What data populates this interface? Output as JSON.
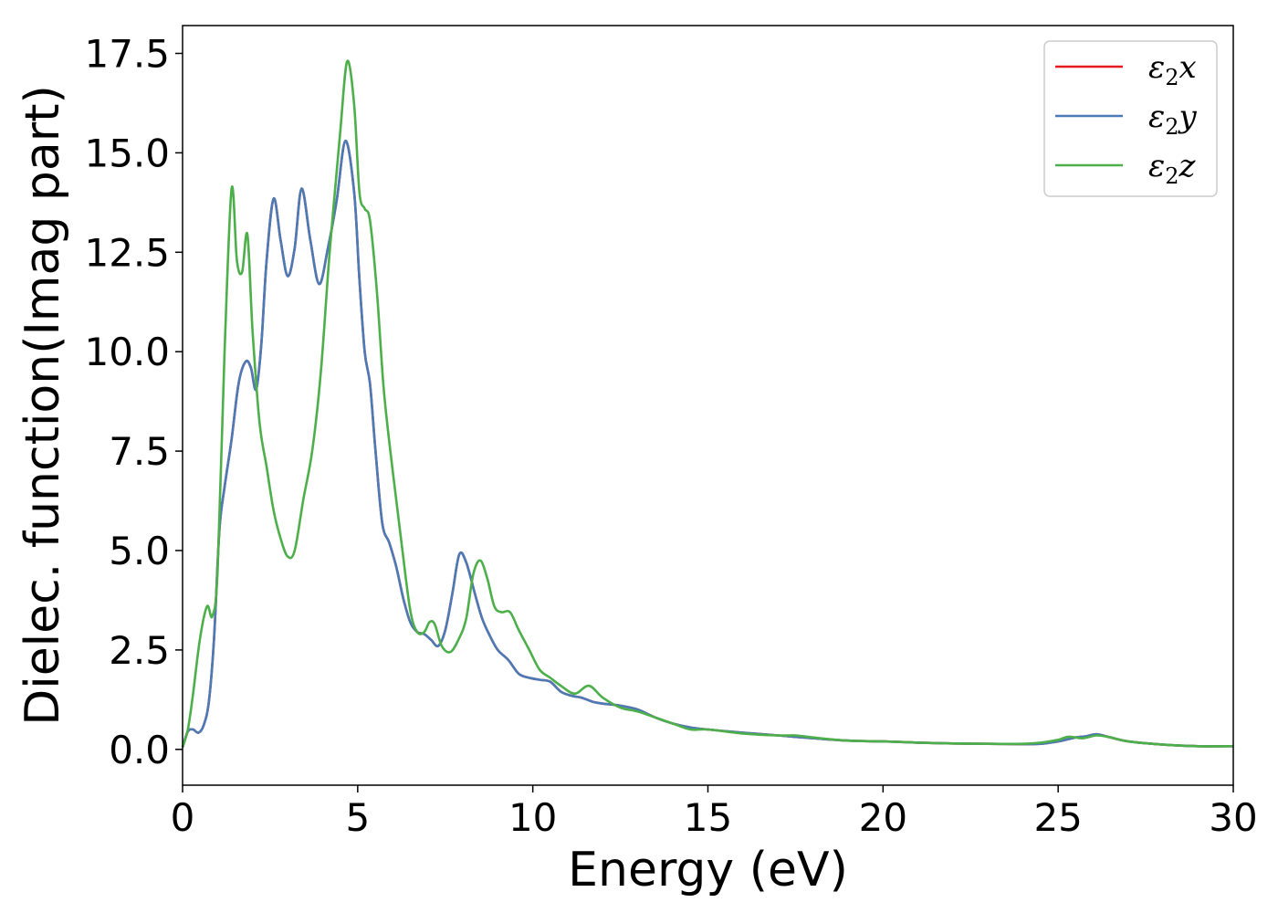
{
  "chart_data": {
    "type": "line",
    "title": "",
    "xlabel": "Energy (eV)",
    "ylabel": "Dielec. function(Imag part)",
    "xlim": [
      0,
      30
    ],
    "ylim": [
      -0.9,
      18.2
    ],
    "x_ticks": [
      0,
      5,
      10,
      15,
      20,
      25,
      30
    ],
    "x_tick_labels": [
      "0",
      "5",
      "10",
      "15",
      "20",
      "25",
      "30"
    ],
    "y_ticks": [
      0.0,
      2.5,
      5.0,
      7.5,
      10.0,
      12.5,
      15.0,
      17.5
    ],
    "y_tick_labels": [
      "0.0",
      "2.5",
      "5.0",
      "7.5",
      "10.0",
      "12.5",
      "15.0",
      "17.5"
    ],
    "grid": false,
    "legend": {
      "position": "top-right"
    },
    "series": [
      {
        "name": "ε2x",
        "legend_main": "ε",
        "legend_sub": "2",
        "legend_tail": "x",
        "color": "#e41a1c",
        "x": [
          0,
          0.15,
          0.3,
          0.45,
          0.6,
          0.75,
          0.9,
          1.05,
          1.2,
          1.4,
          1.6,
          1.8,
          1.95,
          2.1,
          2.25,
          2.4,
          2.6,
          2.8,
          3.0,
          3.2,
          3.4,
          3.65,
          3.9,
          4.15,
          4.4,
          4.65,
          4.9,
          5.05,
          5.2,
          5.35,
          5.5,
          5.7,
          5.9,
          6.1,
          6.3,
          6.5,
          6.7,
          6.9,
          7.1,
          7.3,
          7.5,
          7.7,
          7.9,
          8.1,
          8.35,
          8.55,
          8.75,
          9.0,
          9.3,
          9.6,
          9.9,
          10.2,
          10.5,
          10.8,
          11.1,
          11.4,
          11.7,
          12.0,
          12.5,
          13.0,
          13.5,
          14.0,
          14.5,
          15.0,
          16.0,
          17.0,
          18.0,
          19.0,
          20.0,
          21.0,
          22.0,
          23.0,
          24.0,
          24.5,
          25.0,
          25.5,
          25.8,
          26.1,
          26.5,
          27.0,
          28.0,
          29.0,
          30.0
        ],
        "y": [
          0.05,
          0.45,
          0.5,
          0.42,
          0.6,
          1.2,
          2.8,
          5.5,
          6.6,
          7.8,
          9.2,
          9.75,
          9.6,
          9.05,
          10.2,
          12.3,
          13.85,
          12.8,
          11.9,
          12.6,
          14.1,
          12.8,
          11.7,
          12.6,
          13.8,
          15.3,
          14.0,
          11.8,
          10.0,
          9.2,
          7.6,
          5.7,
          5.2,
          4.6,
          3.8,
          3.2,
          2.95,
          2.9,
          2.75,
          2.6,
          3.0,
          3.9,
          4.9,
          4.7,
          3.9,
          3.3,
          2.9,
          2.5,
          2.25,
          1.9,
          1.8,
          1.75,
          1.7,
          1.45,
          1.35,
          1.3,
          1.2,
          1.15,
          1.1,
          1.0,
          0.8,
          0.65,
          0.55,
          0.5,
          0.42,
          0.35,
          0.28,
          0.22,
          0.2,
          0.17,
          0.15,
          0.14,
          0.13,
          0.14,
          0.2,
          0.3,
          0.33,
          0.38,
          0.3,
          0.2,
          0.12,
          0.08,
          0.08
        ]
      },
      {
        "name": "ε2y",
        "legend_main": "ε",
        "legend_sub": "2",
        "legend_tail": "y",
        "color": "#4a7bb7",
        "x": [
          0,
          0.15,
          0.3,
          0.45,
          0.6,
          0.75,
          0.9,
          1.05,
          1.2,
          1.4,
          1.6,
          1.8,
          1.95,
          2.1,
          2.25,
          2.4,
          2.6,
          2.8,
          3.0,
          3.2,
          3.4,
          3.65,
          3.9,
          4.15,
          4.4,
          4.65,
          4.9,
          5.05,
          5.2,
          5.35,
          5.5,
          5.7,
          5.9,
          6.1,
          6.3,
          6.5,
          6.7,
          6.9,
          7.1,
          7.3,
          7.5,
          7.7,
          7.9,
          8.1,
          8.35,
          8.55,
          8.75,
          9.0,
          9.3,
          9.6,
          9.9,
          10.2,
          10.5,
          10.8,
          11.1,
          11.4,
          11.7,
          12.0,
          12.5,
          13.0,
          13.5,
          14.0,
          14.5,
          15.0,
          16.0,
          17.0,
          18.0,
          19.0,
          20.0,
          21.0,
          22.0,
          23.0,
          24.0,
          24.5,
          25.0,
          25.5,
          25.8,
          26.1,
          26.5,
          27.0,
          28.0,
          29.0,
          30.0
        ],
        "y": [
          0.05,
          0.45,
          0.5,
          0.42,
          0.6,
          1.2,
          2.8,
          5.5,
          6.6,
          7.8,
          9.2,
          9.75,
          9.6,
          9.05,
          10.2,
          12.3,
          13.85,
          12.8,
          11.9,
          12.6,
          14.1,
          12.8,
          11.7,
          12.6,
          13.8,
          15.3,
          14.0,
          11.8,
          10.0,
          9.2,
          7.6,
          5.7,
          5.2,
          4.6,
          3.8,
          3.2,
          2.95,
          2.9,
          2.75,
          2.6,
          3.0,
          3.9,
          4.9,
          4.7,
          3.9,
          3.3,
          2.9,
          2.5,
          2.25,
          1.9,
          1.8,
          1.75,
          1.7,
          1.45,
          1.35,
          1.3,
          1.2,
          1.15,
          1.1,
          1.0,
          0.8,
          0.65,
          0.55,
          0.5,
          0.42,
          0.35,
          0.28,
          0.22,
          0.2,
          0.17,
          0.15,
          0.14,
          0.13,
          0.14,
          0.2,
          0.3,
          0.33,
          0.38,
          0.3,
          0.2,
          0.12,
          0.08,
          0.08
        ]
      },
      {
        "name": "ε2z",
        "legend_main": "ε",
        "legend_sub": "2",
        "legend_tail": "z",
        "color": "#4daf4a",
        "x": [
          0,
          0.15,
          0.3,
          0.5,
          0.7,
          0.85,
          1.0,
          1.2,
          1.4,
          1.55,
          1.7,
          1.85,
          2.0,
          2.2,
          2.4,
          2.6,
          2.8,
          3.0,
          3.2,
          3.45,
          3.7,
          3.95,
          4.2,
          4.5,
          4.7,
          4.9,
          5.05,
          5.2,
          5.35,
          5.55,
          5.75,
          6.0,
          6.25,
          6.5,
          6.7,
          6.9,
          7.05,
          7.2,
          7.4,
          7.65,
          7.9,
          8.1,
          8.3,
          8.5,
          8.7,
          8.9,
          9.1,
          9.35,
          9.6,
          9.9,
          10.2,
          10.5,
          10.8,
          11.2,
          11.6,
          12.0,
          12.5,
          13.0,
          13.5,
          14.0,
          14.5,
          15.0,
          16.0,
          17.0,
          17.5,
          18.0,
          19.0,
          20.0,
          21.0,
          22.0,
          23.0,
          24.0,
          24.5,
          25.0,
          25.3,
          25.7,
          26.1,
          26.5,
          27.0,
          28.0,
          29.0,
          30.0
        ],
        "y": [
          0.05,
          0.5,
          1.4,
          2.8,
          3.6,
          3.35,
          4.5,
          10.0,
          14.1,
          12.3,
          12.0,
          12.95,
          10.5,
          8.2,
          7.1,
          6.0,
          5.3,
          4.85,
          5.0,
          6.3,
          7.5,
          9.5,
          12.5,
          15.5,
          17.3,
          16.2,
          14.0,
          13.6,
          13.3,
          11.5,
          9.0,
          7.0,
          5.2,
          3.5,
          2.95,
          2.95,
          3.2,
          3.15,
          2.6,
          2.45,
          2.8,
          3.3,
          4.4,
          4.75,
          4.3,
          3.6,
          3.45,
          3.45,
          3.0,
          2.5,
          2.0,
          1.8,
          1.6,
          1.4,
          1.6,
          1.3,
          1.05,
          0.95,
          0.8,
          0.65,
          0.5,
          0.5,
          0.4,
          0.35,
          0.35,
          0.3,
          0.22,
          0.2,
          0.17,
          0.15,
          0.14,
          0.14,
          0.17,
          0.24,
          0.32,
          0.28,
          0.35,
          0.3,
          0.2,
          0.12,
          0.08,
          0.08
        ]
      }
    ]
  }
}
